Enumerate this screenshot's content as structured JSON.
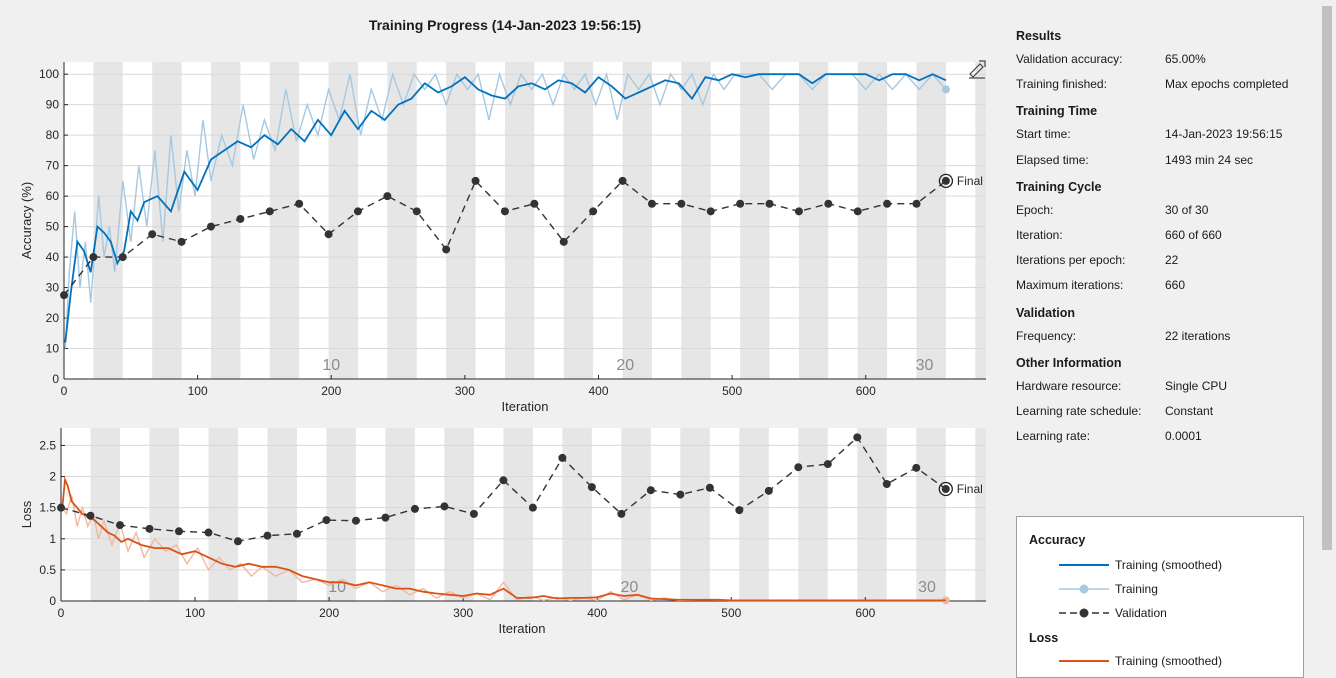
{
  "title": "Training Progress (14-Jan-2023 19:56:15)",
  "chart_data": [
    {
      "type": "line",
      "ylabel": "Accuracy (%)",
      "xlabel": "Iteration",
      "xlim": [
        0,
        690
      ],
      "ylim": [
        0,
        104
      ],
      "xticks": [
        0,
        100,
        200,
        300,
        400,
        500,
        600
      ],
      "yticks": [
        0,
        10,
        20,
        30,
        40,
        50,
        60,
        70,
        80,
        90,
        100
      ],
      "epoch_labels": [
        {
          "epoch": "10",
          "x": 200
        },
        {
          "epoch": "20",
          "x": 420
        },
        {
          "epoch": "30",
          "x": 644
        }
      ],
      "final_label": "Final",
      "series": [
        {
          "name": "Training (smoothed)",
          "x": [
            1,
            5,
            10,
            15,
            20,
            25,
            30,
            35,
            40,
            45,
            50,
            55,
            60,
            70,
            80,
            90,
            100,
            110,
            120,
            130,
            140,
            150,
            160,
            170,
            180,
            190,
            200,
            210,
            220,
            230,
            240,
            250,
            260,
            270,
            280,
            290,
            300,
            310,
            320,
            330,
            340,
            350,
            360,
            370,
            380,
            390,
            400,
            410,
            420,
            430,
            440,
            450,
            460,
            470,
            480,
            490,
            500,
            510,
            520,
            530,
            540,
            550,
            560,
            570,
            580,
            590,
            600,
            610,
            620,
            630,
            640,
            650,
            660
          ],
          "y": [
            12,
            28,
            45,
            42,
            35,
            50,
            48,
            45,
            38,
            42,
            55,
            52,
            58,
            60,
            55,
            68,
            62,
            72,
            75,
            78,
            76,
            80,
            77,
            82,
            78,
            85,
            80,
            88,
            82,
            88,
            85,
            90,
            92,
            97,
            94,
            96,
            99,
            95,
            93,
            92,
            96,
            97,
            95,
            98,
            97,
            94,
            99,
            96,
            92,
            94,
            96,
            98,
            97,
            92,
            99,
            98,
            100,
            99,
            100,
            100,
            100,
            100,
            97,
            100,
            100,
            100,
            100,
            98,
            100,
            100,
            98,
            100,
            98
          ]
        },
        {
          "name": "Training",
          "x": [
            1,
            4,
            8,
            12,
            16,
            20,
            26,
            30,
            34,
            38,
            44,
            50,
            56,
            62,
            68,
            74,
            80,
            86,
            92,
            98,
            104,
            110,
            118,
            126,
            134,
            142,
            150,
            158,
            166,
            174,
            182,
            190,
            198,
            206,
            214,
            222,
            230,
            238,
            246,
            254,
            262,
            270,
            278,
            286,
            294,
            302,
            310,
            318,
            326,
            334,
            342,
            350,
            358,
            366,
            374,
            382,
            390,
            398,
            406,
            414,
            422,
            430,
            438,
            446,
            454,
            462,
            470,
            478,
            486,
            494,
            502,
            510,
            520,
            530,
            540,
            550,
            560,
            570,
            580,
            590,
            600,
            610,
            620,
            630,
            640,
            650,
            660
          ],
          "y": [
            10,
            35,
            55,
            30,
            45,
            25,
            60,
            40,
            50,
            35,
            65,
            45,
            70,
            50,
            75,
            45,
            80,
            55,
            75,
            60,
            85,
            65,
            80,
            70,
            90,
            72,
            85,
            75,
            95,
            78,
            90,
            80,
            95,
            85,
            100,
            80,
            95,
            85,
            100,
            90,
            100,
            95,
            100,
            90,
            100,
            95,
            100,
            85,
            100,
            90,
            100,
            95,
            100,
            90,
            100,
            95,
            100,
            90,
            100,
            85,
            100,
            95,
            100,
            90,
            100,
            95,
            100,
            90,
            100,
            95,
            100,
            100,
            100,
            95,
            100,
            100,
            95,
            100,
            100,
            100,
            95,
            100,
            95,
            100,
            95,
            100,
            95
          ]
        },
        {
          "name": "Validation",
          "x": [
            0,
            22,
            44,
            66,
            88,
            110,
            132,
            154,
            176,
            198,
            220,
            242,
            264,
            286,
            308,
            330,
            352,
            374,
            396,
            418,
            440,
            462,
            484,
            506,
            528,
            550,
            572,
            594,
            616,
            638,
            660
          ],
          "y": [
            27.5,
            40,
            40,
            47.5,
            45,
            50,
            52.5,
            55,
            57.5,
            47.5,
            55,
            60,
            55,
            42.5,
            65,
            55,
            57.5,
            45,
            55,
            65,
            57.5,
            57.5,
            55,
            57.5,
            57.5,
            55,
            57.5,
            55,
            57.5,
            57.5,
            65
          ]
        }
      ]
    },
    {
      "type": "line",
      "ylabel": "Loss",
      "xlabel": "Iteration",
      "xlim": [
        0,
        690
      ],
      "ylim": [
        0,
        2.78
      ],
      "xticks": [
        0,
        100,
        200,
        300,
        400,
        500,
        600
      ],
      "yticks": [
        0,
        0.5,
        1,
        1.5,
        2,
        2.5
      ],
      "ytick_labels": [
        "0",
        "0.5",
        "1",
        "1.5",
        "2",
        "2.5"
      ],
      "epoch_labels": [
        {
          "epoch": "10",
          "x": 206
        },
        {
          "epoch": "20",
          "x": 424
        },
        {
          "epoch": "30",
          "x": 646
        }
      ],
      "final_label": "Final",
      "series": [
        {
          "name": "Training (smoothed)",
          "x": [
            1,
            3,
            5,
            8,
            12,
            16,
            20,
            25,
            30,
            35,
            40,
            45,
            50,
            60,
            70,
            80,
            90,
            100,
            110,
            120,
            130,
            140,
            150,
            160,
            170,
            180,
            190,
            200,
            210,
            220,
            230,
            240,
            250,
            260,
            270,
            280,
            290,
            300,
            310,
            320,
            330,
            340,
            350,
            360,
            370,
            380,
            390,
            400,
            410,
            420,
            430,
            440,
            450,
            460,
            470,
            480,
            490,
            500,
            520,
            540,
            560,
            580,
            600,
            620,
            640,
            660
          ],
          "y": [
            1.5,
            1.95,
            1.85,
            1.6,
            1.5,
            1.4,
            1.35,
            1.3,
            1.2,
            1.1,
            1.05,
            0.95,
            1.0,
            0.9,
            0.85,
            0.85,
            0.75,
            0.8,
            0.7,
            0.6,
            0.55,
            0.6,
            0.55,
            0.55,
            0.5,
            0.4,
            0.35,
            0.3,
            0.3,
            0.25,
            0.3,
            0.25,
            0.2,
            0.2,
            0.15,
            0.12,
            0.1,
            0.08,
            0.12,
            0.1,
            0.2,
            0.05,
            0.05,
            0.08,
            0.04,
            0.05,
            0.05,
            0.06,
            0.12,
            0.08,
            0.1,
            0.04,
            0.03,
            0.02,
            0.02,
            0.02,
            0.02,
            0.01,
            0.01,
            0.01,
            0.01,
            0.01,
            0.01,
            0.01,
            0.01,
            0.01
          ]
        },
        {
          "name": "Training",
          "x": [
            1,
            4,
            8,
            12,
            16,
            20,
            24,
            28,
            32,
            38,
            44,
            50,
            56,
            62,
            70,
            78,
            86,
            94,
            102,
            110,
            118,
            126,
            134,
            142,
            150,
            160,
            170,
            180,
            190,
            200,
            210,
            220,
            230,
            240,
            250,
            260,
            270,
            280,
            290,
            300,
            310,
            320,
            330,
            340,
            350,
            360,
            370,
            380,
            390,
            400,
            410,
            420,
            430,
            440,
            450,
            460,
            480,
            500,
            520,
            540,
            560,
            580,
            600,
            620,
            640,
            660
          ],
          "y": [
            1.5,
            1.4,
            1.7,
            1.2,
            1.5,
            1.2,
            1.4,
            1.0,
            1.3,
            0.9,
            1.25,
            0.8,
            1.1,
            0.7,
            1.0,
            0.8,
            0.9,
            0.6,
            0.85,
            0.5,
            0.7,
            0.5,
            0.6,
            0.4,
            0.55,
            0.4,
            0.5,
            0.3,
            0.35,
            0.25,
            0.35,
            0.2,
            0.3,
            0.15,
            0.25,
            0.1,
            0.2,
            0.05,
            0.15,
            0.05,
            0.12,
            0.02,
            0.3,
            0.02,
            0.08,
            0.01,
            0.06,
            0.01,
            0.05,
            0.01,
            0.15,
            0.02,
            0.1,
            0.01,
            0.05,
            0.01,
            0.02,
            0.01,
            0.01,
            0.01,
            0.01,
            0.01,
            0.01,
            0.01,
            0.01,
            0.01
          ]
        },
        {
          "name": "Validation",
          "x": [
            0,
            22,
            44,
            66,
            88,
            110,
            132,
            154,
            176,
            198,
            220,
            242,
            264,
            286,
            308,
            330,
            352,
            374,
            396,
            418,
            440,
            462,
            484,
            506,
            528,
            550,
            572,
            594,
            616,
            638,
            660
          ],
          "y": [
            1.5,
            1.37,
            1.22,
            1.16,
            1.12,
            1.1,
            0.96,
            1.05,
            1.08,
            1.3,
            1.29,
            1.34,
            1.48,
            1.52,
            1.4,
            1.94,
            1.5,
            2.3,
            1.83,
            1.4,
            1.78,
            1.71,
            1.82,
            1.46,
            1.77,
            2.15,
            2.2,
            2.63,
            1.88,
            2.14,
            1.8
          ]
        }
      ]
    }
  ],
  "info": {
    "results_heading": "Results",
    "validation_accuracy_label": "Validation accuracy:",
    "validation_accuracy_value": "65.00%",
    "training_finished_label": "Training finished:",
    "training_finished_value": "Max epochs completed",
    "training_time_heading": "Training Time",
    "start_time_label": "Start time:",
    "start_time_value": "14-Jan-2023 19:56:15",
    "elapsed_time_label": "Elapsed time:",
    "elapsed_time_value": "1493 min 24 sec",
    "training_cycle_heading": "Training Cycle",
    "epoch_label": "Epoch:",
    "epoch_value": "30 of 30",
    "iteration_label": "Iteration:",
    "iteration_value": "660 of 660",
    "iterations_per_epoch_label": "Iterations per epoch:",
    "iterations_per_epoch_value": "22",
    "maximum_iterations_label": "Maximum iterations:",
    "maximum_iterations_value": "660",
    "validation_heading": "Validation",
    "frequency_label": "Frequency:",
    "frequency_value": "22 iterations",
    "other_information_heading": "Other Information",
    "hardware_resource_label": "Hardware resource:",
    "hardware_resource_value": "Single CPU",
    "learning_rate_schedule_label": "Learning rate schedule:",
    "learning_rate_schedule_value": "Constant",
    "learning_rate_label": "Learning rate:",
    "learning_rate_value": "0.0001"
  },
  "legend": {
    "accuracy_heading": "Accuracy",
    "accuracy_smoothed": "Training (smoothed)",
    "accuracy_training": "Training",
    "accuracy_validation": "Validation",
    "loss_heading": "Loss",
    "loss_smoothed": "Training (smoothed)"
  },
  "colors": {
    "accuracy_smoothed": "#0072bd",
    "accuracy_raw": "#a6c8e0",
    "loss_smoothed": "#d95319",
    "loss_raw": "#f0b8a0",
    "validation": "#333333",
    "epoch_band": "#e6e6e6"
  },
  "icons": {
    "export": "export-plot-icon"
  }
}
